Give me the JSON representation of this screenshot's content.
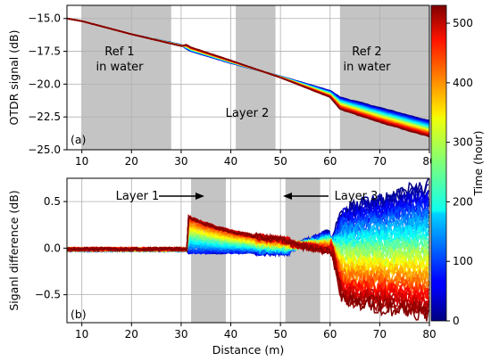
{
  "chart_data": [
    {
      "type": "line",
      "panel_label": "(a)",
      "xlabel": "",
      "ylabel": "OTDR signal (dB)",
      "xlim": [
        7,
        80
      ],
      "ylim": [
        -25,
        -14
      ],
      "xticks": [
        10,
        20,
        30,
        40,
        50,
        60,
        70,
        80
      ],
      "yticks": [
        -25.0,
        -22.5,
        -20.0,
        -17.5,
        -15.0
      ],
      "ytick_labels": [
        "−25.0",
        "−22.5",
        "−20.0",
        "−17.5",
        "−15.0"
      ],
      "grid": true,
      "shaded_regions": [
        {
          "x": [
            10,
            28
          ],
          "label": "Ref 1\nin water"
        },
        {
          "x": [
            41,
            49
          ],
          "label": "Layer 2"
        },
        {
          "x": [
            62,
            80
          ],
          "label": "Ref 2\nin water"
        }
      ],
      "series_note": "Many traces colored by time (0–530 hour)",
      "series": [
        {
          "time_hour": 0,
          "x": [
            7,
            10,
            20,
            30,
            31,
            32,
            40,
            50,
            60,
            62,
            70,
            80
          ],
          "y": [
            -15.0,
            -15.2,
            -16.2,
            -17.0,
            -17.3,
            -17.5,
            -18.4,
            -19.4,
            -20.5,
            -21.0,
            -21.8,
            -22.8
          ]
        },
        {
          "time_hour": 530,
          "x": [
            7,
            10,
            20,
            30,
            31,
            32,
            40,
            50,
            60,
            62,
            70,
            80
          ],
          "y": [
            -15.0,
            -15.2,
            -16.2,
            -17.1,
            -17.0,
            -17.2,
            -18.2,
            -19.5,
            -21.0,
            -21.9,
            -22.9,
            -24.0
          ]
        }
      ]
    },
    {
      "type": "line",
      "panel_label": "(b)",
      "xlabel": "Distance (m)",
      "ylabel": "Siganl difference (dB)",
      "xlim": [
        7,
        80
      ],
      "ylim": [
        -0.8,
        0.75
      ],
      "xticks": [
        10,
        20,
        30,
        40,
        50,
        60,
        70,
        80
      ],
      "yticks": [
        -0.5,
        0.0,
        0.5
      ],
      "ytick_labels": [
        "−0.5",
        "0.0",
        "0.5"
      ],
      "grid": true,
      "shaded_regions": [
        {
          "x": [
            32,
            39
          ],
          "label": "Layer 1"
        },
        {
          "x": [
            51,
            58
          ],
          "label": "Layer 3"
        }
      ],
      "annotations": [
        {
          "text": "Layer 1",
          "arrow": "right"
        },
        {
          "text": "Layer 3",
          "arrow": "left"
        }
      ],
      "series_note": "Difference from initial trace, colored by time (0–530 hour)",
      "series": [
        {
          "time_hour": 30,
          "x": [
            7,
            30,
            32,
            40,
            50,
            60,
            70,
            80
          ],
          "y": [
            -0.03,
            -0.05,
            -0.03,
            -0.05,
            0.0,
            0.1,
            0.3,
            0.5
          ]
        },
        {
          "time_hour": 250,
          "x": [
            7,
            30,
            32,
            40,
            50,
            60,
            62,
            70,
            80
          ],
          "y": [
            0.0,
            0.0,
            0.15,
            0.1,
            0.0,
            -0.05,
            -0.2,
            -0.25,
            -0.2
          ]
        },
        {
          "time_hour": 530,
          "x": [
            7,
            30,
            32,
            40,
            50,
            60,
            62,
            70,
            80
          ],
          "y": [
            0.0,
            0.0,
            0.3,
            0.2,
            0.05,
            -0.1,
            -0.55,
            -0.65,
            -0.7
          ]
        }
      ]
    }
  ],
  "colorbar": {
    "label": "Time (hour)",
    "min": 0,
    "max": 530,
    "ticks": [
      0,
      100,
      200,
      300,
      400,
      500
    ],
    "colormap": "jet"
  },
  "colors": {
    "shade": "#c4c4c4",
    "grid": "#b0b0b0"
  },
  "texts": {
    "a_ylabel": "OTDR signal (dB)",
    "b_ylabel": "Siganl difference (dB)",
    "b_xlabel": "Distance (m)",
    "cb_label": "Time (hour)",
    "a_panel": "(a)",
    "b_panel": "(b)",
    "ref1_line1": "Ref 1",
    "ref1_line2": "in water",
    "ref2_line1": "Ref 2",
    "ref2_line2": "in water",
    "layer2": "Layer 2",
    "layer1": "Layer 1",
    "layer3": "Layer 3"
  }
}
